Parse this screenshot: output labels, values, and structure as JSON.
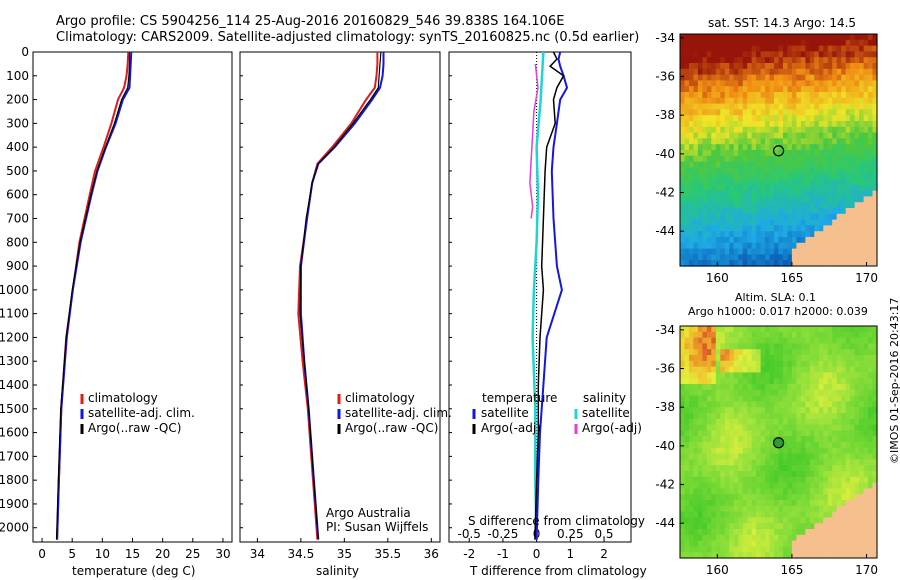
{
  "header": {
    "line1": "Argo profile: CS 5904256_114 25-Aug-2016 20160829_546 39.838S 164.106E",
    "line2": "Climatology: CARS2009. Satellite-adjusted climatology: synTS_20160825.nc (0.5d earlier)"
  },
  "credit": {
    "line1": "Argo Australia",
    "line2": "PI: Susan Wijffels"
  },
  "watermark": "©IMOS 01-Sep-2016 20:43:17",
  "colors": {
    "climatology": "#e11a1a",
    "satellite": "#1515e6",
    "argo": "#000000",
    "salinity_satellite": "#1ed4d4",
    "salinity_argo": "#e53be0",
    "land": "#f6c08e",
    "float_marker": "#2ca02c"
  },
  "maps": [
    {
      "title": "sat. SST: 14.3 Argo: 14.5",
      "variable": "SST",
      "lon_ticks": [
        "160",
        "165",
        "170"
      ],
      "lat_ticks": [
        "-34",
        "-36",
        "-38",
        "-40",
        "-42",
        "-44"
      ],
      "xlim": [
        157.5,
        170.7
      ],
      "ylim": [
        -45.8,
        -33.8
      ],
      "float_position": {
        "lon": 164.106,
        "lat": -39.838
      }
    },
    {
      "title_line1": "Altim. SLA: 0.1",
      "title_line2": "Argo h1000: 0.017 h2000: 0.039",
      "variable": "SLA",
      "lon_ticks": [
        "160",
        "165",
        "170"
      ],
      "lat_ticks": [
        "-34",
        "-36",
        "-38",
        "-40",
        "-42",
        "-44"
      ],
      "xlim": [
        157.5,
        170.7
      ],
      "ylim": [
        -45.8,
        -33.8
      ],
      "float_position": {
        "lon": 164.106,
        "lat": -39.838
      }
    }
  ],
  "chart_data": [
    {
      "type": "line",
      "xlabel": "temperature (deg C)",
      "xlim": [
        -1.5,
        31.5
      ],
      "ylim": [
        2060,
        0
      ],
      "x_ticks": [
        "0",
        "5",
        "10",
        "15",
        "20",
        "25",
        "30"
      ],
      "y_ticks": [
        "0",
        "100",
        "200",
        "300",
        "400",
        "500",
        "600",
        "700",
        "800",
        "900",
        "1000",
        "1100",
        "1200",
        "1300",
        "1400",
        "1500",
        "1600",
        "1700",
        "1800",
        "1900",
        "2000"
      ],
      "legend": [
        "climatology",
        "satellite-adj. clim.",
        "Argo(..raw -QC)"
      ],
      "series": [
        {
          "name": "climatology",
          "depth": [
            0,
            50,
            100,
            150,
            200,
            300,
            400,
            500,
            600,
            800,
            1000,
            1200,
            1500,
            1800,
            2050
          ],
          "values": [
            14.3,
            14.2,
            14.0,
            13.6,
            12.6,
            11.5,
            10.2,
            8.8,
            7.9,
            6.2,
            5.1,
            4.0,
            3.2,
            2.8,
            2.5
          ]
        },
        {
          "name": "satellite-adj. clim.",
          "depth": [
            0,
            50,
            100,
            150,
            200,
            300,
            400,
            500,
            600,
            800,
            1000,
            1200,
            1500,
            1800,
            2050
          ],
          "values": [
            14.8,
            14.7,
            14.6,
            14.5,
            13.4,
            12.2,
            10.6,
            9.2,
            8.2,
            6.4,
            5.1,
            4.1,
            3.2,
            2.8,
            2.5
          ]
        },
        {
          "name": "Argo(..raw -QC)",
          "depth": [
            0,
            50,
            100,
            150,
            200,
            300,
            400,
            500,
            600,
            800,
            1000,
            1200,
            1500,
            1800,
            2050
          ],
          "values": [
            14.5,
            14.5,
            14.4,
            14.2,
            13.2,
            12.0,
            10.5,
            9.1,
            8.1,
            6.3,
            5.0,
            4.0,
            3.1,
            2.7,
            2.4
          ]
        }
      ]
    },
    {
      "type": "line",
      "xlabel": "salinity",
      "xlim": [
        33.8,
        36.1
      ],
      "ylim": [
        2060,
        0
      ],
      "x_ticks": [
        "34",
        "34.5",
        "35",
        "35.5",
        "36"
      ],
      "legend": [
        "climatology",
        "satellite-adj. clim.",
        "Argo(..raw -QC)"
      ],
      "series": [
        {
          "name": "climatology",
          "depth": [
            0,
            50,
            100,
            150,
            200,
            300,
            400,
            470,
            550,
            700,
            900,
            1100,
            1300,
            1500,
            1800,
            2050
          ],
          "values": [
            35.38,
            35.38,
            35.37,
            35.35,
            35.25,
            35.08,
            34.86,
            34.69,
            34.63,
            34.57,
            34.49,
            34.47,
            34.52,
            34.58,
            34.64,
            34.69
          ]
        },
        {
          "name": "satellite-adj. clim.",
          "depth": [
            0,
            50,
            100,
            150,
            200,
            300,
            400,
            470,
            550,
            700,
            900,
            1100,
            1300,
            1500,
            1800,
            2050
          ],
          "values": [
            35.45,
            35.45,
            35.44,
            35.41,
            35.32,
            35.12,
            34.89,
            34.7,
            34.63,
            34.57,
            34.5,
            34.5,
            34.54,
            34.59,
            34.65,
            34.7
          ]
        },
        {
          "name": "Argo(..raw -QC)",
          "depth": [
            0,
            50,
            100,
            150,
            200,
            300,
            400,
            470,
            550,
            700,
            900,
            1100,
            1300,
            1500,
            1800,
            2050
          ],
          "values": [
            35.42,
            35.41,
            35.4,
            35.39,
            35.3,
            35.1,
            34.88,
            34.7,
            34.63,
            34.56,
            34.5,
            34.49,
            34.54,
            34.59,
            34.65,
            34.7
          ]
        }
      ]
    },
    {
      "type": "line",
      "xlabel": "T difference from climatology",
      "x2label": "S difference from climatology",
      "xlim": [
        -2.6,
        2.8
      ],
      "x2lim": [
        -0.65,
        0.7
      ],
      "ylim": [
        2060,
        0
      ],
      "x_ticks": [
        "-2",
        "-1",
        "0",
        "1",
        "2"
      ],
      "x2_ticks": [
        "-0.5",
        "-0.25",
        "0",
        "0.25",
        "0.5"
      ],
      "legend_titles": [
        "temperature",
        "salinity"
      ],
      "legend_temperature": [
        "satellite",
        "Argo(-adj)"
      ],
      "legend_salinity": [
        "satellite",
        "Argo(-adj)"
      ],
      "series": [
        {
          "name": "temperature satellite",
          "depth": [
            0,
            30,
            60,
            100,
            150,
            200,
            300,
            400,
            500,
            700,
            900,
            1000,
            1200,
            1400,
            1600,
            1800,
            2050
          ],
          "values": [
            0.7,
            0.65,
            0.7,
            0.8,
            0.9,
            0.7,
            0.6,
            0.5,
            0.45,
            0.5,
            0.6,
            0.75,
            0.3,
            0.2,
            0.1,
            0.05,
            0.0
          ]
        },
        {
          "name": "temperature Argo(-adj)",
          "depth": [
            0,
            30,
            60,
            100,
            150,
            200,
            300,
            400,
            500,
            700,
            900,
            1000,
            1200,
            1400,
            1600,
            1800,
            2050
          ],
          "values": [
            0.5,
            0.6,
            0.4,
            0.8,
            0.6,
            0.5,
            0.55,
            0.3,
            0.25,
            0.2,
            0.15,
            0.2,
            0.1,
            0.05,
            0.05,
            0.0,
            -0.05
          ]
        },
        {
          "name": "salinity satellite",
          "depth": [
            0,
            100,
            200,
            400,
            600,
            800,
            1000,
            1200,
            1500,
            1800,
            2050
          ],
          "values": [
            0.05,
            0.04,
            0.03,
            0.0,
            0.01,
            0.0,
            -0.02,
            -0.03,
            -0.01,
            -0.01,
            0.0
          ]
        },
        {
          "name": "salinity Argo(-adj)",
          "depth": [
            50,
            150,
            250,
            350,
            450,
            550,
            650,
            700
          ],
          "values": [
            -0.01,
            0.01,
            -0.02,
            -0.03,
            -0.04,
            -0.05,
            -0.03,
            -0.04
          ]
        }
      ]
    }
  ]
}
